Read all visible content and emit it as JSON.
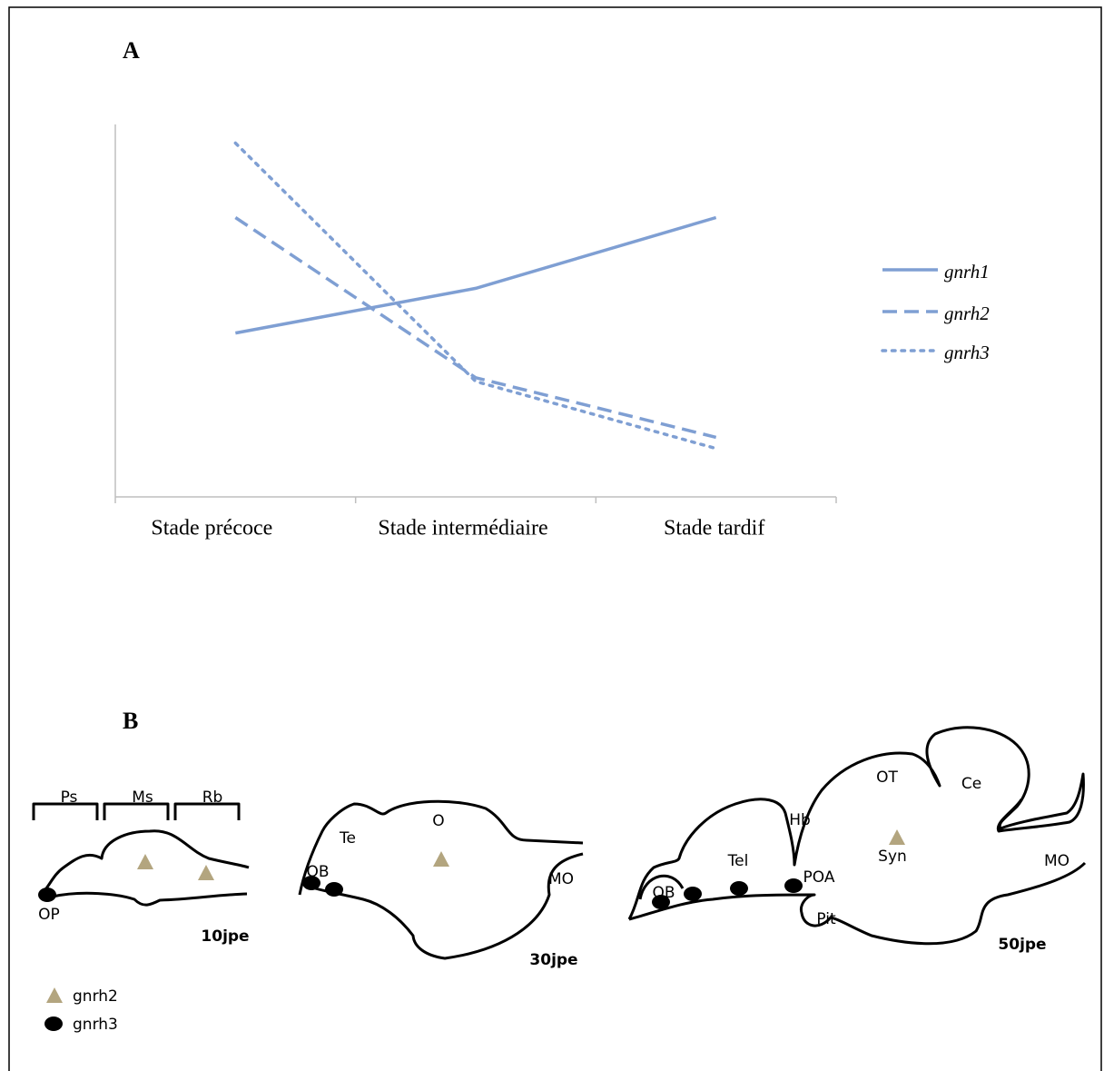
{
  "chart_data": {
    "type": "line",
    "panel_label": "A",
    "categories": [
      "Stade précoce",
      "Stade intermédiaire",
      "Stade tardif"
    ],
    "series": [
      {
        "name": "gnrh1",
        "color": "#7f9fd3",
        "dash": "solid",
        "values": [
          44,
          56,
          75
        ]
      },
      {
        "name": "gnrh2",
        "color": "#7f9fd3",
        "dash": "dashed",
        "values": [
          75,
          32,
          16
        ]
      },
      {
        "name": "gnrh3",
        "color": "#7f9fd3",
        "dash": "dotted",
        "values": [
          95,
          31,
          13
        ]
      }
    ],
    "ylim": [
      0,
      100
    ],
    "legend": "right"
  },
  "panel_b": {
    "panel_label": "B",
    "diagrams": [
      {
        "stage": "10jpe",
        "labels": [
          "Ps",
          "Ms",
          "Rb",
          "OP"
        ]
      },
      {
        "stage": "30jpe",
        "labels": [
          "Te",
          "O",
          "OB",
          "MO"
        ]
      },
      {
        "stage": "50jpe",
        "labels": [
          "OT",
          "Ce",
          "Hb",
          "Tel",
          "Syn",
          "MO",
          "OB",
          "POA",
          "Pit"
        ]
      }
    ],
    "legend": [
      "gnrh2",
      "gnrh3"
    ]
  }
}
